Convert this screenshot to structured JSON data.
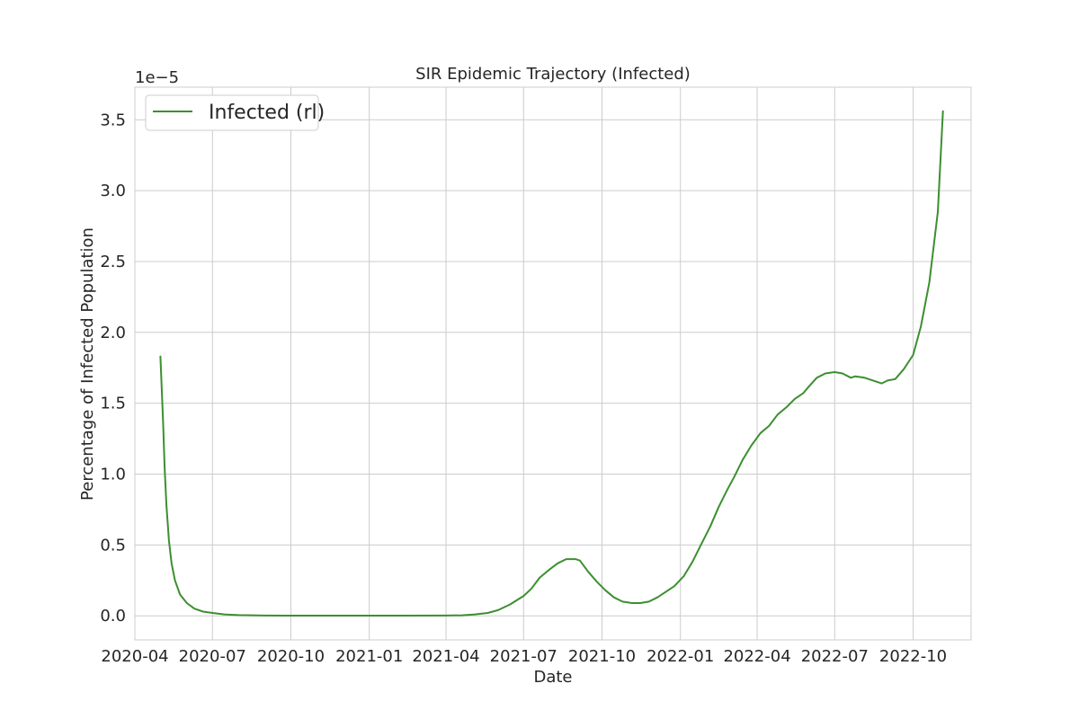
{
  "chart_data": {
    "type": "line",
    "title": "SIR Epidemic Trajectory (Infected)",
    "xlabel": "Date",
    "ylabel": "Percentage of Infected Population",
    "y_offset_label": "1e−5",
    "y_scale_factor": 1e-05,
    "x_type": "date",
    "xlim": [
      "2020-04-01",
      "2022-12-08"
    ],
    "ylim": [
      -0.17,
      3.73
    ],
    "x_ticks": [
      "2020-04-01",
      "2020-07-01",
      "2020-10-01",
      "2021-01-01",
      "2021-04-01",
      "2021-07-01",
      "2021-10-01",
      "2022-01-01",
      "2022-04-01",
      "2022-07-01",
      "2022-10-01"
    ],
    "x_tick_labels": [
      "2020-04",
      "2020-07",
      "2020-10",
      "2021-01",
      "2021-04",
      "2021-07",
      "2021-10",
      "2022-01",
      "2022-04",
      "2022-07",
      "2022-10"
    ],
    "y_ticks": [
      0.0,
      0.5,
      1.0,
      1.5,
      2.0,
      2.5,
      3.0,
      3.5
    ],
    "y_tick_labels": [
      "0.0",
      "0.5",
      "1.0",
      "1.5",
      "2.0",
      "2.5",
      "3.0",
      "3.5"
    ],
    "grid": true,
    "legend_position": "top-left",
    "series": [
      {
        "name": "Infected (rl)",
        "color": "#3c8f30",
        "x": [
          "2020-05-01",
          "2020-05-04",
          "2020-05-06",
          "2020-05-08",
          "2020-05-11",
          "2020-05-14",
          "2020-05-18",
          "2020-05-24",
          "2020-06-01",
          "2020-06-10",
          "2020-06-20",
          "2020-07-01",
          "2020-07-15",
          "2020-08-01",
          "2020-09-01",
          "2020-10-01",
          "2020-12-01",
          "2021-02-01",
          "2021-04-01",
          "2021-04-20",
          "2021-05-05",
          "2021-05-20",
          "2021-06-01",
          "2021-06-15",
          "2021-07-01",
          "2021-07-10",
          "2021-07-20",
          "2021-08-01",
          "2021-08-10",
          "2021-08-20",
          "2021-08-31",
          "2021-09-05",
          "2021-09-15",
          "2021-09-25",
          "2021-10-05",
          "2021-10-15",
          "2021-10-25",
          "2021-11-05",
          "2021-11-15",
          "2021-11-25",
          "2021-12-05",
          "2021-12-15",
          "2021-12-25",
          "2022-01-05",
          "2022-01-15",
          "2022-01-25",
          "2022-02-05",
          "2022-02-15",
          "2022-02-25",
          "2022-03-05",
          "2022-03-15",
          "2022-03-25",
          "2022-04-05",
          "2022-04-15",
          "2022-04-25",
          "2022-05-05",
          "2022-05-15",
          "2022-05-25",
          "2022-06-01",
          "2022-06-10",
          "2022-06-20",
          "2022-07-01",
          "2022-07-10",
          "2022-07-20",
          "2022-07-25",
          "2022-08-05",
          "2022-08-15",
          "2022-08-25",
          "2022-09-01",
          "2022-09-10",
          "2022-09-20",
          "2022-10-01",
          "2022-10-10",
          "2022-10-20",
          "2022-10-30",
          "2022-11-05"
        ],
        "values": [
          1.83,
          1.38,
          1.03,
          0.78,
          0.53,
          0.37,
          0.25,
          0.15,
          0.09,
          0.05,
          0.03,
          0.02,
          0.01,
          0.005,
          0.002,
          0.001,
          0.001,
          0.001,
          0.002,
          0.004,
          0.01,
          0.02,
          0.04,
          0.08,
          0.14,
          0.19,
          0.27,
          0.33,
          0.37,
          0.4,
          0.4,
          0.39,
          0.31,
          0.24,
          0.18,
          0.13,
          0.1,
          0.09,
          0.09,
          0.1,
          0.13,
          0.17,
          0.21,
          0.28,
          0.38,
          0.5,
          0.63,
          0.77,
          0.89,
          0.98,
          1.1,
          1.2,
          1.29,
          1.34,
          1.42,
          1.47,
          1.53,
          1.57,
          1.62,
          1.68,
          1.71,
          1.72,
          1.71,
          1.68,
          1.69,
          1.68,
          1.66,
          1.64,
          1.66,
          1.67,
          1.74,
          1.84,
          2.04,
          2.35,
          2.85,
          3.56
        ]
      }
    ]
  }
}
